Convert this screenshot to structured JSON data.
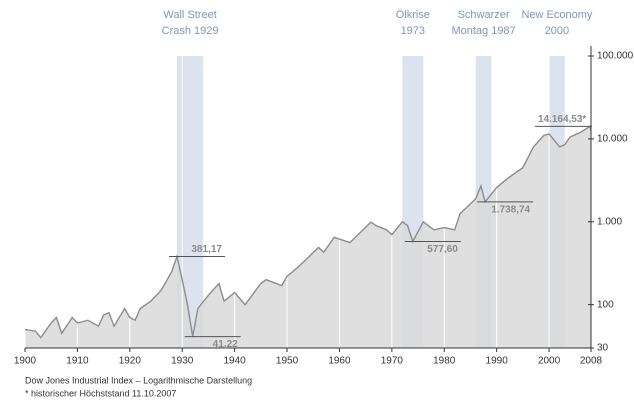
{
  "chart_data": {
    "type": "line",
    "log_scale": true,
    "color": "#8c8c8c",
    "area_color": "#d9d9d9",
    "band_color": "#dde3ee",
    "x": [
      1900,
      1902,
      1903,
      1905,
      1906,
      1907,
      1909,
      1910,
      1912,
      1914,
      1915,
      1916,
      1917,
      1919,
      1920,
      1921,
      1922,
      1924,
      1926,
      1928,
      1929,
      1930,
      1931,
      1932,
      1933,
      1935,
      1937,
      1938,
      1940,
      1942,
      1945,
      1946,
      1949,
      1950,
      1952,
      1954,
      1956,
      1957,
      1959,
      1962,
      1966,
      1967,
      1969,
      1970,
      1972,
      1973,
      1974,
      1976,
      1978,
      1980,
      1982,
      1983,
      1986,
      1987,
      1987.8,
      1990,
      1992,
      1995,
      1997,
      1999,
      2000,
      2002,
      2003,
      2004,
      2006,
      2007.8,
      2008
    ],
    "values": [
      50,
      48,
      40,
      60,
      70,
      45,
      70,
      60,
      65,
      55,
      75,
      80,
      55,
      90,
      70,
      65,
      90,
      110,
      150,
      250,
      381.17,
      200,
      100,
      41.22,
      90,
      130,
      180,
      110,
      140,
      100,
      180,
      200,
      170,
      220,
      280,
      370,
      490,
      430,
      650,
      560,
      990,
      900,
      800,
      700,
      1000,
      900,
      577.6,
      1000,
      800,
      850,
      800,
      1250,
      1900,
      2700,
      1738.74,
      2600,
      3300,
      4500,
      8000,
      11000,
      11500,
      8000,
      8500,
      10500,
      12000,
      14164.53,
      12500
    ],
    "xlim": [
      1900,
      2008
    ],
    "xticks": [
      1900,
      1910,
      1920,
      1930,
      1940,
      1950,
      1960,
      1970,
      1980,
      1990,
      2000,
      2008
    ],
    "ylim": [
      30,
      100000
    ],
    "yticks": [
      {
        "value": 100000,
        "label": "100.000"
      },
      {
        "value": 10000,
        "label": "10.000"
      },
      {
        "value": 1000,
        "label": "1.000"
      },
      100,
      30
    ],
    "events": [
      {
        "lines": [
          "Wall Street",
          "Crash 1929"
        ],
        "range": [
          1929,
          1934
        ]
      },
      {
        "lines": [
          "Ölkrise",
          "1973"
        ],
        "range": [
          1972,
          1976
        ]
      },
      {
        "lines": [
          "Schwarzer",
          "Montag 1987"
        ],
        "range": [
          1986,
          1989
        ]
      },
      {
        "lines": [
          "New Economy",
          "2000"
        ],
        "range": [
          2000,
          2003
        ]
      }
    ],
    "annotations": [
      {
        "x": 1929,
        "value": 381.17,
        "label": "381,17"
      },
      {
        "x": 1932,
        "value": 41.22,
        "label": "41,22"
      },
      {
        "x": 1974,
        "value": 577.6,
        "label": "577,60"
      },
      {
        "x": 1987.8,
        "value": 1738.74,
        "label": "1.738,74"
      },
      {
        "x": 2007.8,
        "value": 14164.53,
        "label": "14.164,53*"
      }
    ],
    "notes": [
      "Dow Jones Industrial Index – Logarithmische Darstellung",
      "* historischer Höchststand 11.10.2007"
    ]
  }
}
